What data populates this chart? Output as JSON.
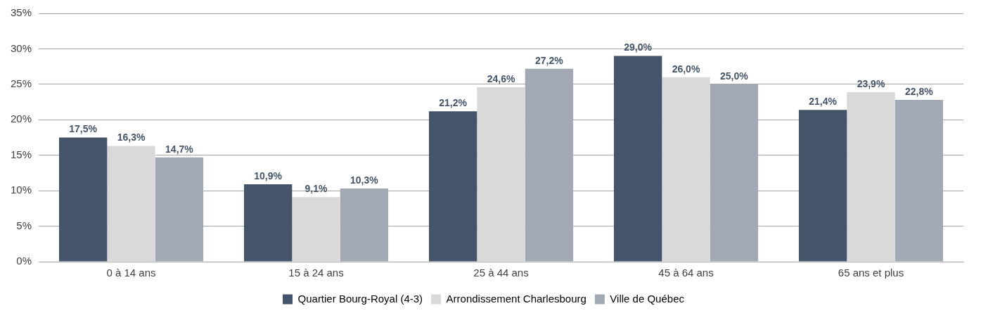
{
  "chart_data": {
    "type": "bar",
    "categories": [
      "0 à 14 ans",
      "15 à 24 ans",
      "25 à 44 ans",
      "45 à 64 ans",
      "65 ans et plus"
    ],
    "series": [
      {
        "name": "Quartier Bourg-Royal (4-3)",
        "color": "#44546a",
        "values": [
          17.5,
          10.9,
          21.2,
          29.0,
          21.4
        ],
        "value_labels": [
          "17,5%",
          "10,9%",
          "21,2%",
          "29,0%",
          "21,4%"
        ]
      },
      {
        "name": "Arrondissement Charlesbourg",
        "color": "#d9d9d9",
        "values": [
          16.3,
          9.1,
          24.6,
          26.0,
          23.9
        ],
        "value_labels": [
          "16,3%",
          "9,1%",
          "24,6%",
          "26,0%",
          "23,9%"
        ]
      },
      {
        "name": "Ville de Québec",
        "color": "#a1aab4",
        "values": [
          14.7,
          10.3,
          27.2,
          25.0,
          22.8
        ],
        "value_labels": [
          "14,7%",
          "10,3%",
          "27,2%",
          "25,0%",
          "22,8%"
        ]
      }
    ],
    "ylim": [
      0,
      35
    ],
    "yticks": [
      {
        "value": 0,
        "label": "0%"
      },
      {
        "value": 5,
        "label": "5%"
      },
      {
        "value": 10,
        "label": "10%"
      },
      {
        "value": 15,
        "label": "15%"
      },
      {
        "value": 20,
        "label": "20%"
      },
      {
        "value": 25,
        "label": "25%"
      },
      {
        "value": 30,
        "label": "30%"
      },
      {
        "value": 35,
        "label": "35%"
      }
    ],
    "grid": "y",
    "legend": "bottom"
  }
}
